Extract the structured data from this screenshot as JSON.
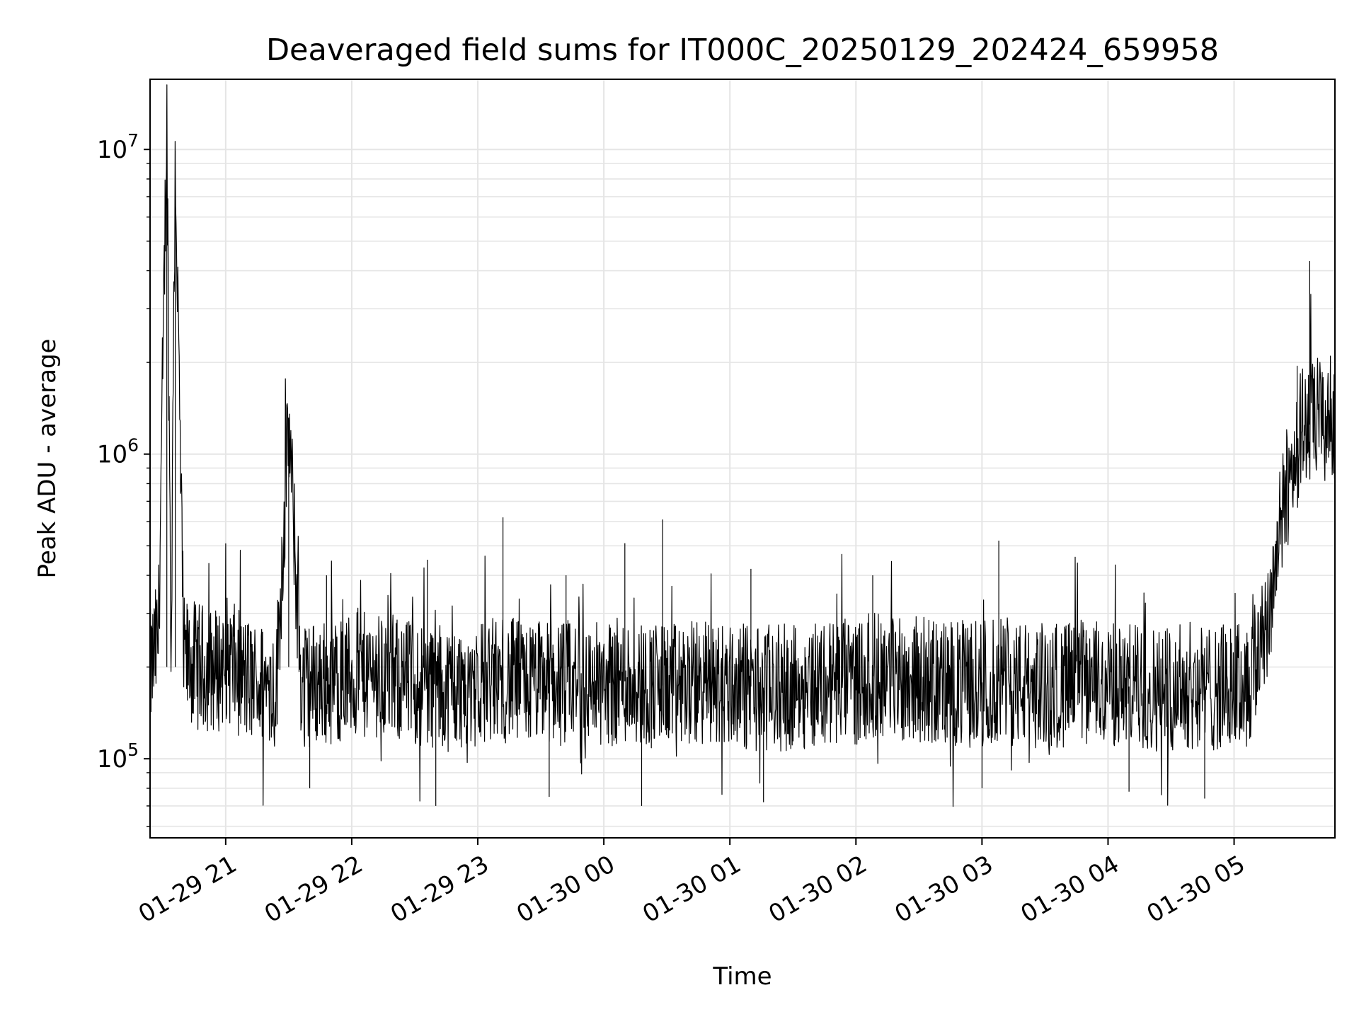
{
  "chart_data": {
    "type": "line",
    "title": "Deaveraged field sums for IT000C_20250129_202424_659958",
    "xlabel": "Time",
    "ylabel": "Peak ADU - average",
    "yscale": "log",
    "ylim": [
      55000,
      17000000
    ],
    "xlim": [
      "2025-01-29 20:24",
      "2025-01-30 05:48"
    ],
    "grid": true,
    "line_color": "#000000",
    "x_ticks": [
      "01-29 21",
      "01-29 22",
      "01-29 23",
      "01-30 00",
      "01-30 01",
      "01-30 02",
      "01-30 03",
      "01-30 04",
      "01-30 05"
    ],
    "y_ticks": [
      {
        "base": "10",
        "exp": "5"
      },
      {
        "base": "10",
        "exp": "6"
      },
      {
        "base": "10",
        "exp": "7"
      }
    ],
    "series": [
      {
        "x": [
          "2025-01-29 20:24",
          "2025-01-29 20:28",
          "2025-01-29 20:32",
          "2025-01-29 20:34",
          "2025-01-29 20:36",
          "2025-01-29 20:40",
          "2025-01-29 20:48",
          "2025-01-29 20:56",
          "2025-01-29 21:00",
          "2025-01-29 21:08",
          "2025-01-29 21:16",
          "2025-01-29 21:24",
          "2025-01-29 21:30",
          "2025-01-29 21:36",
          "2025-01-29 21:48",
          "2025-01-29 22:00",
          "2025-01-29 22:12",
          "2025-01-29 22:24",
          "2025-01-29 22:36",
          "2025-01-29 22:48",
          "2025-01-29 23:00",
          "2025-01-29 23:12",
          "2025-01-29 23:24",
          "2025-01-29 23:36",
          "2025-01-29 23:48",
          "2025-01-30 00:00",
          "2025-01-30 00:12",
          "2025-01-30 00:24",
          "2025-01-30 00:36",
          "2025-01-30 00:48",
          "2025-01-30 01:00",
          "2025-01-30 01:12",
          "2025-01-30 01:24",
          "2025-01-30 01:36",
          "2025-01-30 01:48",
          "2025-01-30 02:00",
          "2025-01-30 02:12",
          "2025-01-30 02:24",
          "2025-01-30 02:36",
          "2025-01-30 02:48",
          "2025-01-30 03:00",
          "2025-01-30 03:12",
          "2025-01-30 03:24",
          "2025-01-30 03:36",
          "2025-01-30 03:48",
          "2025-01-30 04:00",
          "2025-01-30 04:12",
          "2025-01-30 04:24",
          "2025-01-30 04:36",
          "2025-01-30 04:48",
          "2025-01-30 05:00",
          "2025-01-30 05:04",
          "2025-01-30 05:08",
          "2025-01-30 05:12",
          "2025-01-30 05:16",
          "2025-01-30 05:20",
          "2025-01-30 05:24",
          "2025-01-30 05:28",
          "2025-01-30 05:32",
          "2025-01-30 05:36",
          "2025-01-30 05:40",
          "2025-01-30 05:44",
          "2025-01-30 05:48"
        ],
        "y": [
          190000,
          250000,
          12800000,
          220000,
          9900000,
          210000,
          200000,
          195000,
          215000,
          185000,
          175000,
          170000,
          1250000,
          175000,
          180000,
          185000,
          190000,
          180000,
          175000,
          170000,
          178000,
          182000,
          175000,
          180000,
          175000,
          178000,
          180000,
          175000,
          172000,
          178000,
          175000,
          172000,
          170000,
          175000,
          178000,
          180000,
          190000,
          185000,
          180000,
          175000,
          178000,
          180000,
          172000,
          175000,
          178000,
          175000,
          172000,
          170000,
          175000,
          170000,
          172000,
          175000,
          180000,
          230000,
          300000,
          450000,
          700000,
          950000,
          1200000,
          1250000,
          1300000,
          1250000,
          1350000
        ]
      }
    ],
    "spikes": [
      {
        "x": "2025-01-29 21:48",
        "y": 400000
      },
      {
        "x": "2025-01-29 22:36",
        "y": 450000
      },
      {
        "x": "2025-01-29 23:12",
        "y": 620000
      },
      {
        "x": "2025-01-29 23:42",
        "y": 400000
      },
      {
        "x": "2025-01-30 00:10",
        "y": 510000
      },
      {
        "x": "2025-01-30 00:28",
        "y": 610000
      },
      {
        "x": "2025-01-30 01:10",
        "y": 420000
      },
      {
        "x": "2025-01-30 02:08",
        "y": 400000
      },
      {
        "x": "2025-01-30 03:08",
        "y": 520000
      },
      {
        "x": "2025-01-30 05:36",
        "y": 4300000
      },
      {
        "x": "2025-01-30 05:30",
        "y": 1950000
      }
    ],
    "dips": [
      {
        "x": "2025-01-29 21:40",
        "y": 80000
      },
      {
        "x": "2025-01-29 22:40",
        "y": 70000
      },
      {
        "x": "2025-01-29 23:34",
        "y": 75000
      },
      {
        "x": "2025-01-30 00:18",
        "y": 70000
      },
      {
        "x": "2025-01-30 01:16",
        "y": 72000
      },
      {
        "x": "2025-01-30 03:00",
        "y": 80000
      },
      {
        "x": "2025-01-30 04:10",
        "y": 78000
      },
      {
        "x": "2025-01-30 04:46",
        "y": 74000
      }
    ]
  }
}
